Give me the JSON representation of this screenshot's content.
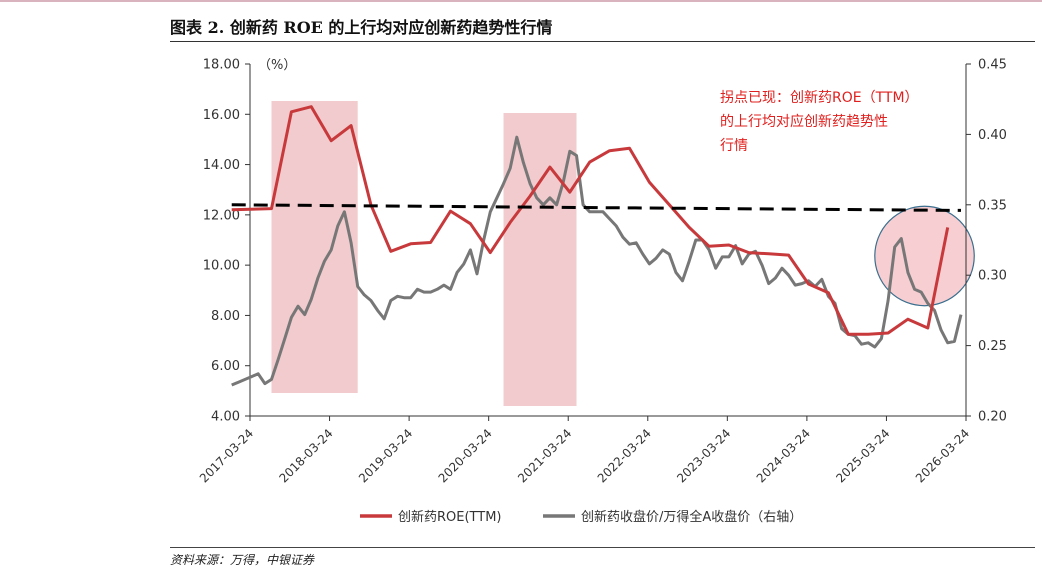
{
  "title": "图表 2. 创新药 ROE 的上行均对应创新药趋势性行情",
  "source": "资料来源：万得，中银证券",
  "colors": {
    "roe_line": "#c8393c",
    "price_line": "#777777",
    "trend_dash": "#000000",
    "highlight_fill": "#e8a8ac",
    "circle_fill": "#f0a6ad",
    "circle_stroke": "#3a6f8f",
    "annotation": "#e0201e"
  },
  "chart_data": {
    "type": "line",
    "y_unit": "（%）",
    "ylim_left": [
      4,
      18
    ],
    "yticks_left": [
      "4.00",
      "6.00",
      "8.00",
      "10.00",
      "12.00",
      "14.00",
      "16.00",
      "18.00"
    ],
    "ylim_right": [
      0.2,
      0.45
    ],
    "yticks_right": [
      "0.20",
      "0.25",
      "0.30",
      "0.35",
      "0.40",
      "0.45"
    ],
    "xticks": [
      "2017-03-24",
      "2018-03-24",
      "2019-03-24",
      "2020-03-24",
      "2021-03-24",
      "2022-03-24",
      "2023-03-24",
      "2024-03-24",
      "2025-03-24",
      "2026-03-24"
    ],
    "legend": [
      "创新药ROE(TTM)",
      "创新药收盘价/万得全A收盘价（右轴）"
    ],
    "annotation": [
      "拐点已现：创新药ROE（TTM）",
      "的上行均对应创新药趋势性",
      "行情"
    ],
    "highlight_spans": [
      [
        "2017-07",
        "2018-08"
      ],
      [
        "2020-06",
        "2021-05"
      ]
    ],
    "circle_region": [
      "2025-02",
      "2026-05"
    ],
    "series": [
      {
        "name": "创新药ROE(TTM)",
        "axis": "left",
        "x": [
          "2017-01",
          "2017-07",
          "2017-10",
          "2018-01",
          "2018-04",
          "2018-07",
          "2018-10",
          "2019-01",
          "2019-04",
          "2019-07",
          "2019-10",
          "2020-01",
          "2020-04",
          "2020-07",
          "2020-10",
          "2021-01",
          "2021-04",
          "2021-07",
          "2021-10",
          "2022-01",
          "2022-04",
          "2022-07",
          "2022-10",
          "2023-01",
          "2023-04",
          "2023-07",
          "2023-10",
          "2024-01",
          "2024-04",
          "2024-07",
          "2024-10",
          "2025-01",
          "2025-04",
          "2025-07",
          "2025-10",
          "2026-01"
        ],
        "values": [
          12.2,
          12.25,
          16.1,
          16.3,
          14.95,
          15.55,
          12.4,
          10.55,
          10.85,
          10.9,
          12.15,
          11.65,
          10.5,
          11.7,
          12.75,
          13.9,
          12.9,
          14.1,
          14.55,
          14.65,
          13.3,
          12.4,
          11.5,
          10.75,
          10.8,
          10.5,
          10.45,
          10.4,
          9.25,
          8.9,
          7.25,
          7.25,
          7.3,
          7.85,
          7.5,
          11.5
        ]
      },
      {
        "name": "创新药收盘价/万得全A收盘价（右轴）",
        "axis": "right",
        "x": [
          "2017-01",
          "2017-02",
          "2017-04",
          "2017-05",
          "2017-06",
          "2017-07",
          "2017-08",
          "2017-09",
          "2017-10",
          "2017-11",
          "2017-12",
          "2018-01",
          "2018-02",
          "2018-03",
          "2018-04",
          "2018-05",
          "2018-06",
          "2018-07",
          "2018-08",
          "2018-09",
          "2018-10",
          "2018-11",
          "2018-12",
          "2019-01",
          "2019-02",
          "2019-03",
          "2019-04",
          "2019-05",
          "2019-06",
          "2019-07",
          "2019-08",
          "2019-09",
          "2019-10",
          "2019-11",
          "2019-12",
          "2020-01",
          "2020-02",
          "2020-03",
          "2020-04",
          "2020-05",
          "2020-06",
          "2020-07",
          "2020-08",
          "2020-09",
          "2020-10",
          "2020-11",
          "2020-12",
          "2021-01",
          "2021-02",
          "2021-03",
          "2021-04",
          "2021-05",
          "2021-06",
          "2021-07",
          "2021-08",
          "2021-09",
          "2021-10",
          "2021-11",
          "2021-12",
          "2022-01",
          "2022-02",
          "2022-03",
          "2022-04",
          "2022-05",
          "2022-06",
          "2022-07",
          "2022-08",
          "2022-09",
          "2022-10",
          "2022-11",
          "2022-12",
          "2023-01",
          "2023-02",
          "2023-03",
          "2023-04",
          "2023-05",
          "2023-06",
          "2023-07",
          "2023-08",
          "2023-09",
          "2023-10",
          "2023-11",
          "2023-12",
          "2024-01",
          "2024-02",
          "2024-03",
          "2024-04",
          "2024-05",
          "2024-06",
          "2024-07",
          "2024-08",
          "2024-09",
          "2024-10",
          "2024-11",
          "2024-12",
          "2025-01",
          "2025-02",
          "2025-03",
          "2025-04",
          "2025-05",
          "2025-06",
          "2025-07",
          "2025-08",
          "2025-09",
          "2025-10",
          "2025-11",
          "2025-12",
          "2026-01",
          "2026-02",
          "2026-03"
        ],
        "values": [
          0.222,
          0.224,
          0.228,
          0.23,
          0.223,
          0.226,
          0.24,
          0.255,
          0.27,
          0.278,
          0.272,
          0.283,
          0.298,
          0.31,
          0.318,
          0.335,
          0.345,
          0.323,
          0.292,
          0.286,
          0.282,
          0.275,
          0.269,
          0.282,
          0.285,
          0.284,
          0.284,
          0.29,
          0.288,
          0.288,
          0.29,
          0.293,
          0.29,
          0.302,
          0.308,
          0.318,
          0.301,
          0.325,
          0.345,
          0.355,
          0.365,
          0.376,
          0.398,
          0.38,
          0.365,
          0.355,
          0.35,
          0.355,
          0.35,
          0.366,
          0.388,
          0.385,
          0.35,
          0.345,
          0.345,
          0.345,
          0.34,
          0.335,
          0.327,
          0.322,
          0.323,
          0.315,
          0.308,
          0.312,
          0.318,
          0.315,
          0.302,
          0.296,
          0.31,
          0.325,
          0.325,
          0.318,
          0.305,
          0.313,
          0.313,
          0.321,
          0.308,
          0.315,
          0.317,
          0.307,
          0.294,
          0.298,
          0.305,
          0.3,
          0.293,
          0.294,
          0.296,
          0.292,
          0.297,
          0.285,
          0.28,
          0.262,
          0.258,
          0.257,
          0.251,
          0.252,
          0.249,
          0.255,
          0.282,
          0.32,
          0.326,
          0.302,
          0.29,
          0.288,
          0.28,
          0.275,
          0.261,
          0.252,
          0.253,
          0.272
        ]
      }
    ],
    "trend_line": {
      "axis": "right",
      "x": [
        "2017-01",
        "2026-03"
      ],
      "values": [
        0.35,
        0.346
      ]
    }
  }
}
